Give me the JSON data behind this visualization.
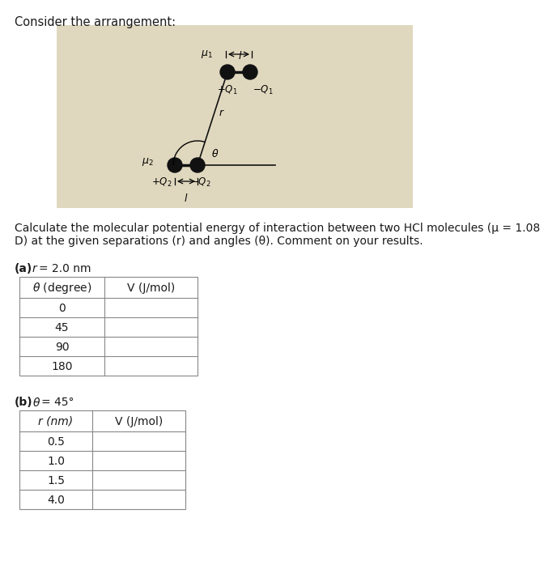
{
  "title_text": "Consider the arrangement:",
  "desc_line1": "Calculate the molecular potential energy of interaction between two HCl molecules (μ = 1.08",
  "desc_line2": "D) at the given separations (r) and angles (θ). Comment on your results.",
  "part_a_label_bold": "(a)",
  "part_a_label_rest": "  r = 2.0 nm",
  "part_a_col1_header": "θ (degree)",
  "part_a_col2_header": "V (J/mol)",
  "part_a_rows": [
    "0",
    "45",
    "90",
    "180"
  ],
  "part_b_label_bold": "(b)",
  "part_b_label_rest": "  θ = 45°",
  "part_b_col1_header": "r (nm)",
  "part_b_col2_header": "V (J/mol)",
  "part_b_rows": [
    "0.5",
    "1.0",
    "1.5",
    "4.0"
  ],
  "bg_color": "#ffffff",
  "text_color": "#1a1a1a",
  "table_line_color": "#888888",
  "diagram_bg": "#c8b98a",
  "font_size_title": 10.5,
  "font_size_body": 10,
  "font_size_table": 10
}
